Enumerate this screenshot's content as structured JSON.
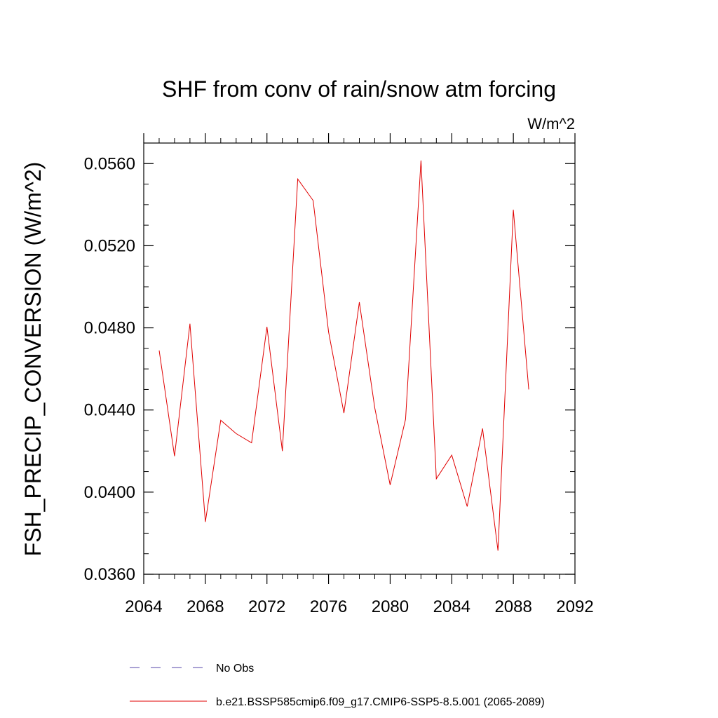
{
  "chart_data": {
    "type": "line",
    "title": "SHF from conv of rain/snow atm forcing",
    "units_label": "W/m^2",
    "ylabel": "FSH_PRECIP_CONVERSION  (W/m^2)",
    "xlabel": "",
    "xlim": [
      2064,
      2092
    ],
    "ylim": [
      0.036,
      0.057
    ],
    "x_ticks": [
      "2064",
      "2068",
      "2072",
      "2076",
      "2080",
      "2084",
      "2088",
      "2092"
    ],
    "y_ticks": [
      "0.0360",
      "0.0400",
      "0.0440",
      "0.0480",
      "0.0520",
      "0.0560"
    ],
    "grid": false,
    "legend_placement": "bottom",
    "series": [
      {
        "name": "b.e21.BSSP585cmip6.f09_g17.CMIP6-SSP5-8.5.001 (2065-2089)",
        "color": "#e00000",
        "style": "solid",
        "x": [
          2065,
          2066,
          2067,
          2068,
          2069,
          2070,
          2071,
          2072,
          2073,
          2074,
          2075,
          2076,
          2077,
          2078,
          2079,
          2080,
          2081,
          2082,
          2083,
          2084,
          2085,
          2086,
          2087,
          2088,
          2089
        ],
        "values": [
          0.0469,
          0.04175,
          0.0482,
          0.03855,
          0.0435,
          0.04285,
          0.0424,
          0.04805,
          0.042,
          0.05525,
          0.0542,
          0.0478,
          0.04385,
          0.04925,
          0.0441,
          0.04035,
          0.04355,
          0.05615,
          0.04065,
          0.0418,
          0.0393,
          0.0431,
          0.03715,
          0.05375,
          0.045
        ]
      }
    ],
    "legend": [
      {
        "label": "No Obs",
        "color": "#5544aa",
        "style": "dashed"
      },
      {
        "label": "b.e21.BSSP585cmip6.f09_g17.CMIP6-SSP5-8.5.001 (2065-2089)",
        "color": "#e00000",
        "style": "solid"
      }
    ]
  }
}
